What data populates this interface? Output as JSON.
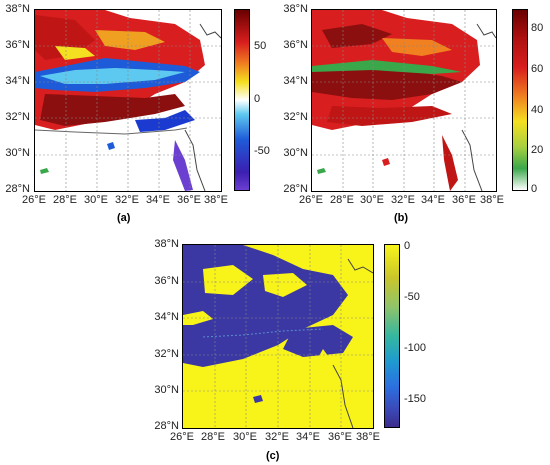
{
  "panels": {
    "a": {
      "caption": "(a)",
      "x_ticks": [
        "26°E",
        "28°E",
        "30°E",
        "32°E",
        "34°E",
        "36°E",
        "38°E"
      ],
      "y_ticks": [
        "38°N",
        "36°N",
        "34°N",
        "32°N",
        "30°N",
        "28°N"
      ],
      "colorbar_labels": [
        "50",
        "0",
        "-50"
      ],
      "colormap": "jet-diverging",
      "range": [
        -80,
        80
      ]
    },
    "b": {
      "caption": "(b)",
      "x_ticks": [
        "26°E",
        "28°E",
        "30°E",
        "32°E",
        "34°E",
        "36°E",
        "38°E"
      ],
      "y_ticks": [
        "38°N",
        "36°N",
        "34°N",
        "32°N",
        "30°N",
        "28°N"
      ],
      "colorbar_labels": [
        "80",
        "60",
        "40",
        "20",
        "0"
      ],
      "colormap": "hot-jet",
      "range": [
        0,
        88
      ]
    },
    "c": {
      "caption": "(c)",
      "x_ticks": [
        "26°E",
        "28°E",
        "30°E",
        "32°E",
        "34°E",
        "36°E",
        "38°E"
      ],
      "y_ticks": [
        "38°N",
        "36°N",
        "34°N",
        "32°N",
        "30°N",
        "28°N"
      ],
      "colorbar_labels": [
        "0",
        "-50",
        "-100",
        "-150"
      ],
      "colormap": "parula",
      "range": [
        -175,
        0
      ]
    }
  },
  "colors": {
    "sea_yellow": "#f8f41a",
    "dark_blue": "#3b37a3",
    "dark_red": "#7a0b0b",
    "red": "#d81e1e",
    "coast": "#444444"
  }
}
